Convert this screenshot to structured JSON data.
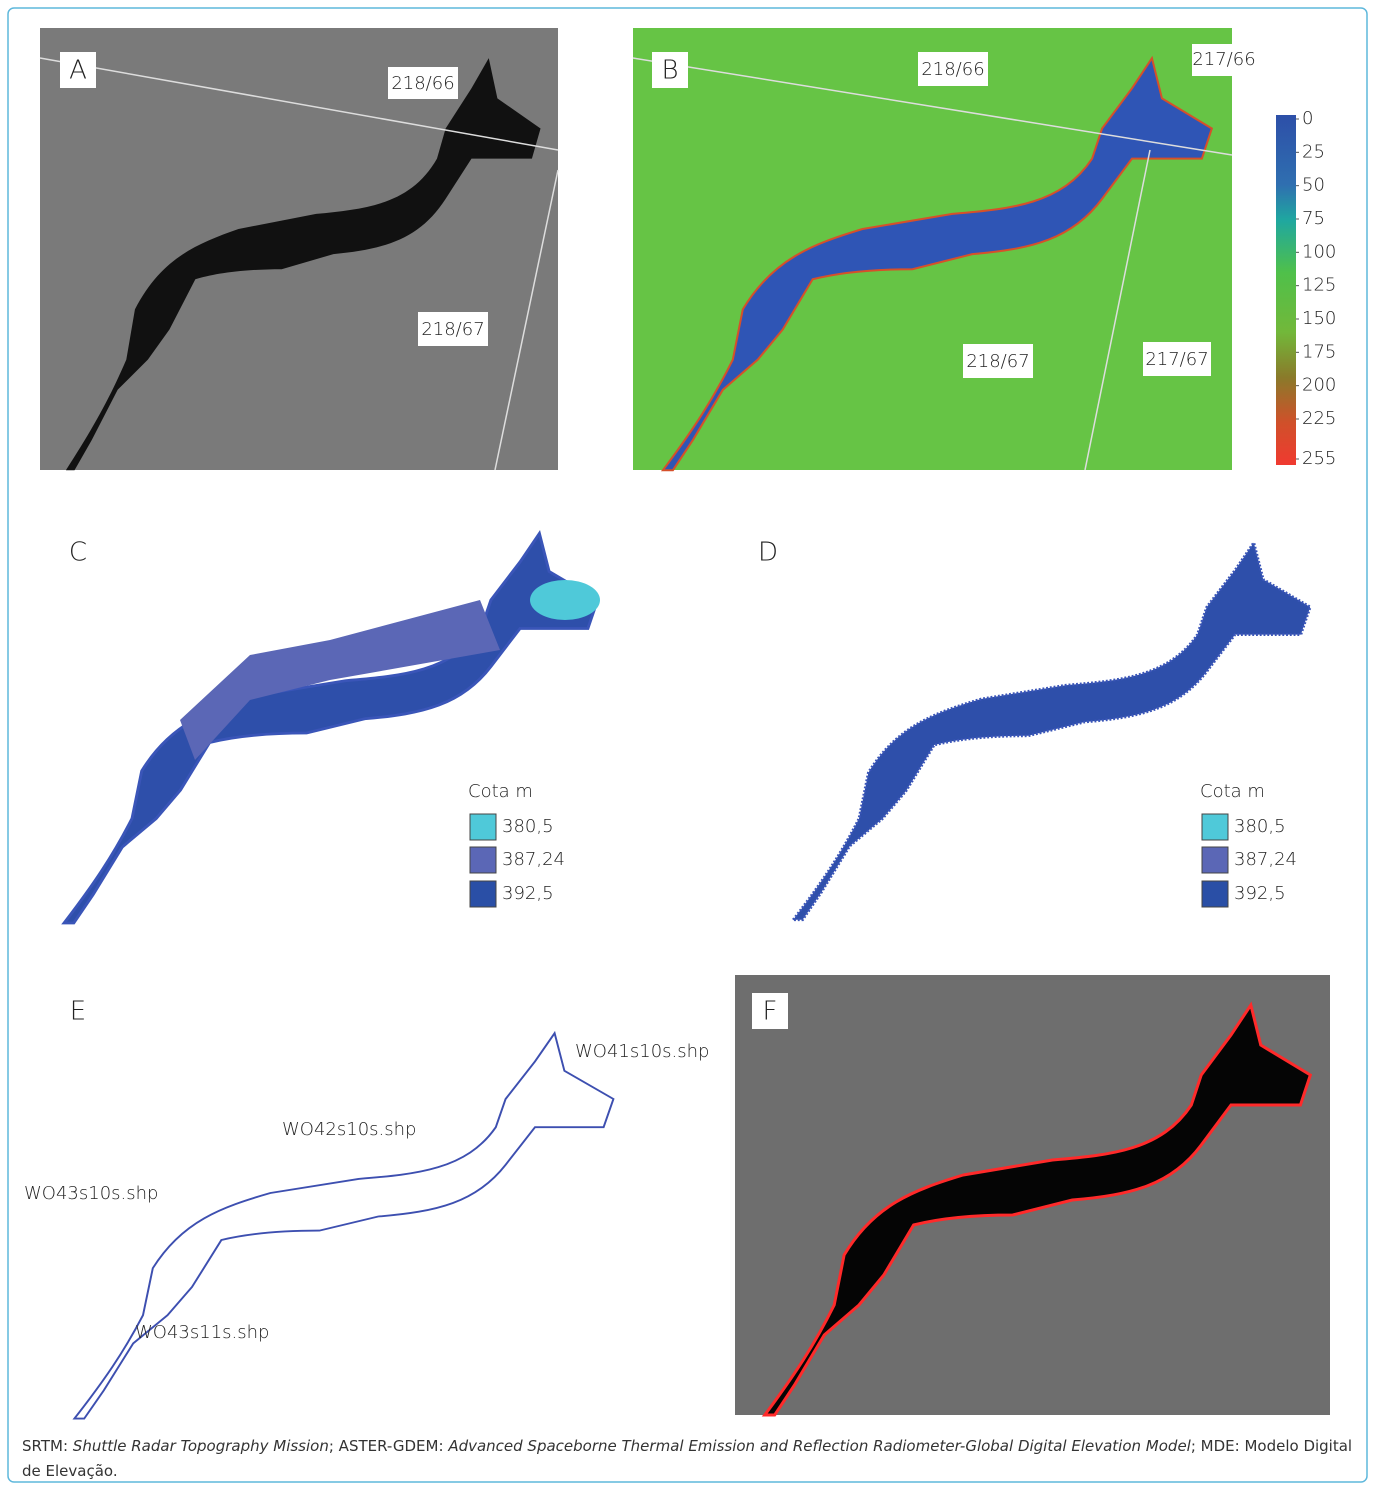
{
  "panels": {
    "A": {
      "label": "A",
      "tiles": [
        "218/66",
        "218/67"
      ]
    },
    "B": {
      "label": "B",
      "tiles": [
        "218/66",
        "217/66",
        "218/67",
        "217/67"
      ],
      "colorbar_ticks": [
        0,
        25,
        50,
        75,
        100,
        125,
        150,
        175,
        200,
        225,
        255
      ]
    },
    "C": {
      "label": "C",
      "legend": {
        "title": "Cota m",
        "items": [
          "380,5",
          "387,24",
          "392,5"
        ]
      }
    },
    "D": {
      "label": "D",
      "legend": {
        "title": "Cota m",
        "items": [
          "380,5",
          "387,24",
          "392,5"
        ]
      }
    },
    "E": {
      "label": "E",
      "files": [
        "WO41s10s.shp",
        "WO42s10s.shp",
        "WO43s10s.shp",
        "WO43s11s.shp"
      ]
    },
    "F": {
      "label": "F"
    }
  },
  "footnote": {
    "parts": [
      "SRTM:",
      "Shuttle Radar Topography Mission",
      "; ASTER-GDEM:",
      "Advanced Spaceborne Thermal Emission and Reflection Radiometer-Global Digital Elevation Model",
      "; MDE: Modelo Digital de Elevação."
    ]
  }
}
